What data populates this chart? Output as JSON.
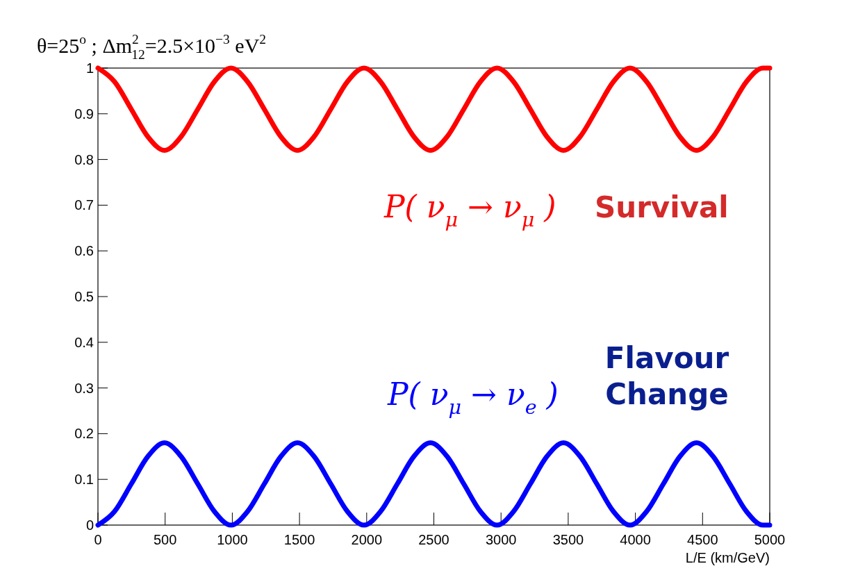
{
  "chart_data": {
    "type": "line",
    "title": "θ=25$^{o}$  ;  Δm$^{2}$$_{12}$=2.5×10$^{−3}$  eV$^{2}$",
    "xlabel": "L/E (km/GeV)",
    "x": [
      0,
      124,
      248,
      371,
      495,
      619,
      743,
      866,
      990,
      1114,
      1238,
      1361,
      1485,
      1609,
      1733,
      1856,
      1980,
      2104,
      2228,
      2351,
      2475,
      2599,
      2723,
      2846,
      2970,
      3094,
      3218,
      3341,
      3465,
      3589,
      3713,
      3836,
      3960,
      4084,
      4208,
      4331,
      4455,
      4579,
      4703,
      4826,
      4950,
      5000
    ],
    "series": [
      {
        "name": "P( ν$_{μ}$ → ν$_{μ}$ )",
        "color": "#ff0000",
        "values": [
          1,
          0.97,
          0.91,
          0.85,
          0.82,
          0.85,
          0.91,
          0.97,
          1,
          0.97,
          0.91,
          0.85,
          0.82,
          0.85,
          0.91,
          0.97,
          1,
          0.97,
          0.91,
          0.85,
          0.82,
          0.85,
          0.91,
          0.97,
          1,
          0.97,
          0.91,
          0.85,
          0.82,
          0.85,
          0.91,
          0.97,
          1,
          0.97,
          0.91,
          0.85,
          0.82,
          0.85,
          0.91,
          0.97,
          1,
          1
        ]
      },
      {
        "name": "P( ν$_{μ}$ → ν$_{e}$ )",
        "color": "#0000ff",
        "values": [
          0,
          0.03,
          0.09,
          0.15,
          0.18,
          0.15,
          0.09,
          0.03,
          0,
          0.03,
          0.09,
          0.15,
          0.18,
          0.15,
          0.09,
          0.03,
          0,
          0.03,
          0.09,
          0.15,
          0.18,
          0.15,
          0.09,
          0.03,
          0,
          0.03,
          0.09,
          0.15,
          0.18,
          0.15,
          0.09,
          0.03,
          0,
          0.03,
          0.09,
          0.15,
          0.18,
          0.15,
          0.09,
          0.03,
          0,
          0
        ]
      }
    ],
    "annotations": [
      "Survival",
      "Flavour Change"
    ],
    "xlim": [
      0,
      5000
    ],
    "xticks": [
      0,
      500,
      1000,
      1500,
      2000,
      2500,
      3000,
      3500,
      4000,
      4500,
      5000
    ],
    "ylim": [
      0,
      1
    ],
    "yticks": [
      0,
      0.1,
      0.2,
      0.3,
      0.4,
      0.5,
      0.6,
      0.7,
      0.8,
      0.9,
      1
    ],
    "grid": false,
    "line_style": "solid",
    "marker": "none"
  }
}
